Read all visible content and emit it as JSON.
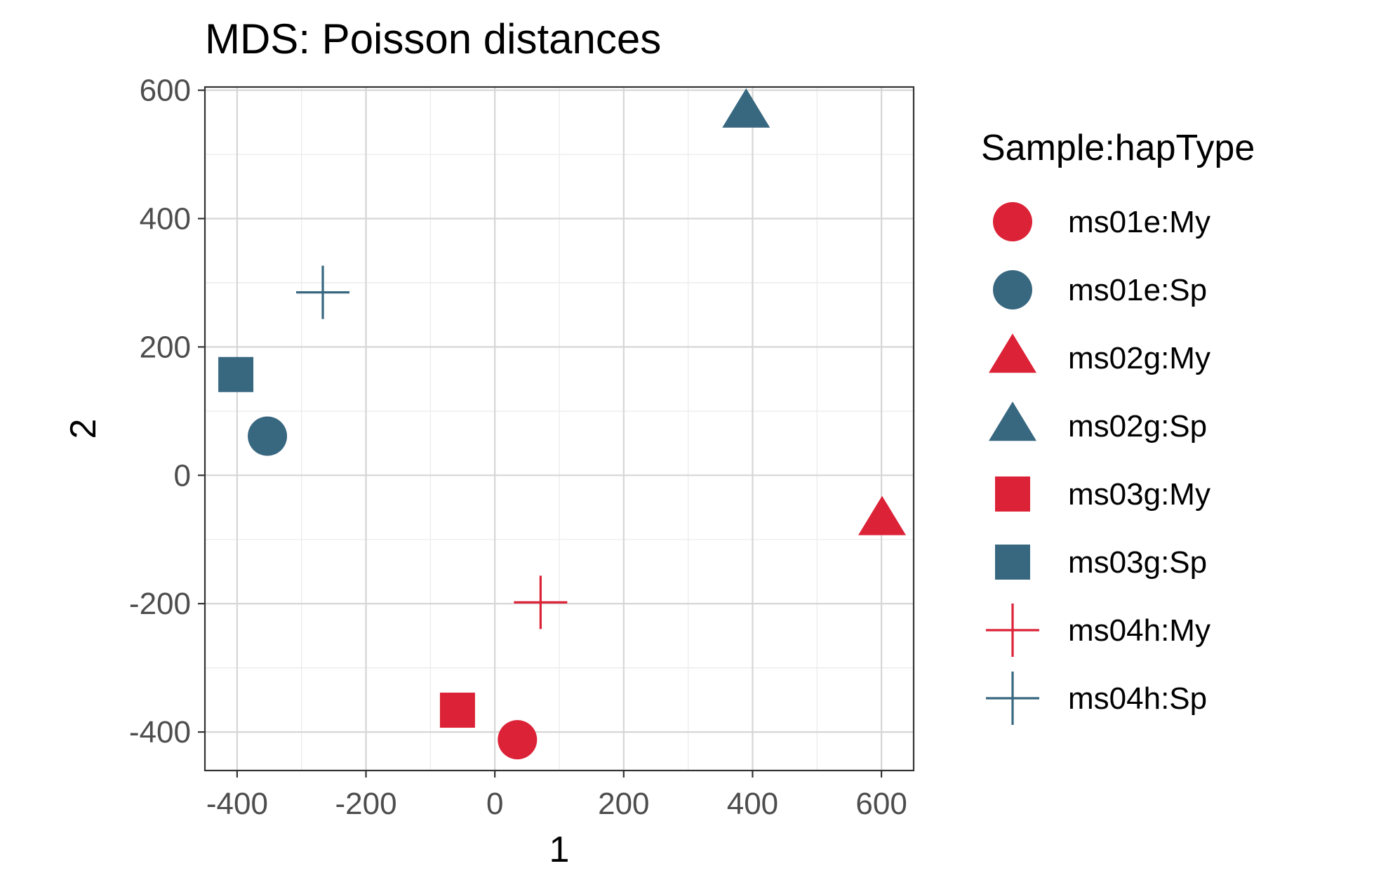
{
  "chart_data": {
    "type": "scatter",
    "title": "MDS: Poisson distances",
    "xlabel": "1",
    "ylabel": "2",
    "xlim": [
      -450,
      650
    ],
    "ylim": [
      -460,
      605
    ],
    "xticks": [
      -400,
      -200,
      0,
      200,
      400,
      600
    ],
    "xtick_labels": [
      "-400",
      "-200",
      "0",
      "200",
      "400",
      "600"
    ],
    "yticks": [
      -400,
      -200,
      0,
      200,
      400,
      600
    ],
    "ytick_labels": [
      "-400",
      "-200",
      "0",
      "200",
      "400",
      "600"
    ],
    "grid": true,
    "legend_title": "Sample:hapType",
    "legend_position": "right",
    "colors": {
      "My": "#DC2237",
      "Sp": "#386780"
    },
    "series": [
      {
        "name": "ms01e:My",
        "shape": "circle",
        "group": "My",
        "x": 35,
        "y": -412
      },
      {
        "name": "ms01e:Sp",
        "shape": "circle",
        "group": "Sp",
        "x": -353,
        "y": 61
      },
      {
        "name": "ms02g:My",
        "shape": "triangle",
        "group": "My",
        "x": 601,
        "y": -70
      },
      {
        "name": "ms02g:Sp",
        "shape": "triangle",
        "group": "Sp",
        "x": 390,
        "y": 565
      },
      {
        "name": "ms03g:My",
        "shape": "square",
        "group": "My",
        "x": -58,
        "y": -366
      },
      {
        "name": "ms03g:Sp",
        "shape": "square",
        "group": "Sp",
        "x": -402,
        "y": 157
      },
      {
        "name": "ms04h:My",
        "shape": "cross",
        "group": "My",
        "x": 71,
        "y": -198
      },
      {
        "name": "ms04h:Sp",
        "shape": "cross",
        "group": "Sp",
        "x": -267,
        "y": 285
      }
    ]
  }
}
